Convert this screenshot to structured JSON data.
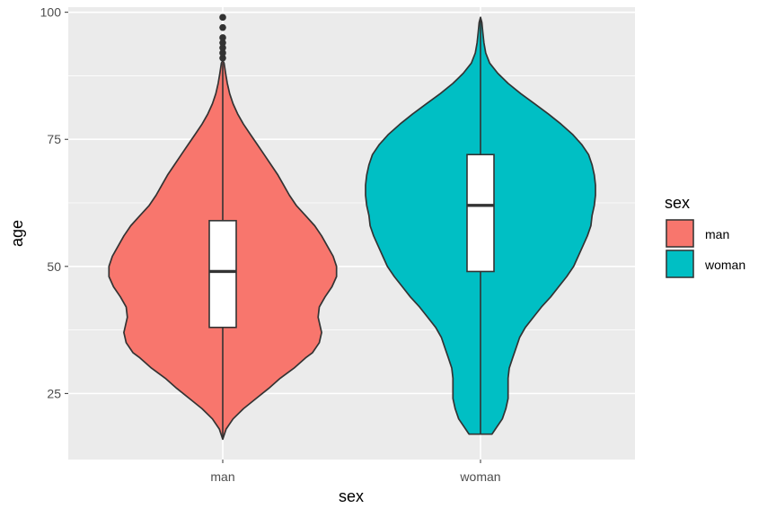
{
  "chart_data": {
    "type": "violin",
    "xlabel": "sex",
    "ylabel": "age",
    "categories": [
      "man",
      "woman"
    ],
    "ylim": [
      12,
      101
    ],
    "y_ticks": [
      25,
      50,
      75,
      100
    ],
    "y_tick_labels": [
      "25",
      "50",
      "75",
      "100"
    ],
    "grid": true,
    "legend": {
      "title": "sex",
      "position": "right",
      "entries": [
        {
          "label": "man",
          "color": "#F8766D"
        },
        {
          "label": "woman",
          "color": "#00BFC4"
        }
      ]
    },
    "series": [
      {
        "name": "man",
        "color": "#F8766D",
        "range": [
          16,
          90.5
        ],
        "boxplot": {
          "lower_whisker": 16,
          "q1": 38,
          "median": 49,
          "q3": 59,
          "upper_whisker": 90
        },
        "outliers": [
          91,
          92,
          93,
          94,
          95,
          97,
          99
        ],
        "density_profile": [
          [
            16,
            0.0
          ],
          [
            18,
            0.03
          ],
          [
            20,
            0.09
          ],
          [
            22,
            0.18
          ],
          [
            24,
            0.29
          ],
          [
            26,
            0.4
          ],
          [
            28,
            0.5
          ],
          [
            30,
            0.62
          ],
          [
            32,
            0.72
          ],
          [
            33,
            0.78
          ],
          [
            35,
            0.84
          ],
          [
            37,
            0.86
          ],
          [
            38,
            0.85
          ],
          [
            40,
            0.83
          ],
          [
            42,
            0.84
          ],
          [
            44,
            0.89
          ],
          [
            46,
            0.95
          ],
          [
            48,
            0.99
          ],
          [
            50,
            0.99
          ],
          [
            52,
            0.96
          ],
          [
            54,
            0.91
          ],
          [
            56,
            0.86
          ],
          [
            58,
            0.8
          ],
          [
            60,
            0.72
          ],
          [
            62,
            0.64
          ],
          [
            64,
            0.58
          ],
          [
            66,
            0.53
          ],
          [
            68,
            0.48
          ],
          [
            70,
            0.42
          ],
          [
            72,
            0.36
          ],
          [
            74,
            0.3
          ],
          [
            76,
            0.24
          ],
          [
            78,
            0.18
          ],
          [
            80,
            0.13
          ],
          [
            82,
            0.09
          ],
          [
            84,
            0.06
          ],
          [
            86,
            0.04
          ],
          [
            88,
            0.025
          ],
          [
            90,
            0.012
          ],
          [
            90.5,
            0.0
          ]
        ]
      },
      {
        "name": "woman",
        "color": "#00BFC4",
        "range": [
          17,
          99
        ],
        "boxplot": {
          "lower_whisker": 17,
          "q1": 49,
          "median": 62,
          "q3": 72,
          "upper_whisker": 99
        },
        "outliers": [],
        "density_profile": [
          [
            17,
            0.1
          ],
          [
            18,
            0.13
          ],
          [
            20,
            0.19
          ],
          [
            22,
            0.22
          ],
          [
            24,
            0.24
          ],
          [
            26,
            0.24
          ],
          [
            28,
            0.24
          ],
          [
            30,
            0.25
          ],
          [
            32,
            0.28
          ],
          [
            34,
            0.31
          ],
          [
            36,
            0.34
          ],
          [
            38,
            0.39
          ],
          [
            40,
            0.46
          ],
          [
            42,
            0.53
          ],
          [
            44,
            0.61
          ],
          [
            46,
            0.68
          ],
          [
            48,
            0.75
          ],
          [
            50,
            0.81
          ],
          [
            52,
            0.85
          ],
          [
            54,
            0.89
          ],
          [
            56,
            0.93
          ],
          [
            58,
            0.96
          ],
          [
            60,
            0.97
          ],
          [
            62,
            0.99
          ],
          [
            64,
            1.0
          ],
          [
            66,
            1.0
          ],
          [
            68,
            0.99
          ],
          [
            70,
            0.97
          ],
          [
            72,
            0.94
          ],
          [
            74,
            0.88
          ],
          [
            76,
            0.8
          ],
          [
            78,
            0.7
          ],
          [
            80,
            0.59
          ],
          [
            82,
            0.47
          ],
          [
            84,
            0.35
          ],
          [
            86,
            0.24
          ],
          [
            88,
            0.15
          ],
          [
            90,
            0.08
          ],
          [
            92,
            0.045
          ],
          [
            94,
            0.03
          ],
          [
            96,
            0.02
          ],
          [
            98,
            0.012
          ],
          [
            99,
            0.0
          ]
        ]
      }
    ]
  }
}
